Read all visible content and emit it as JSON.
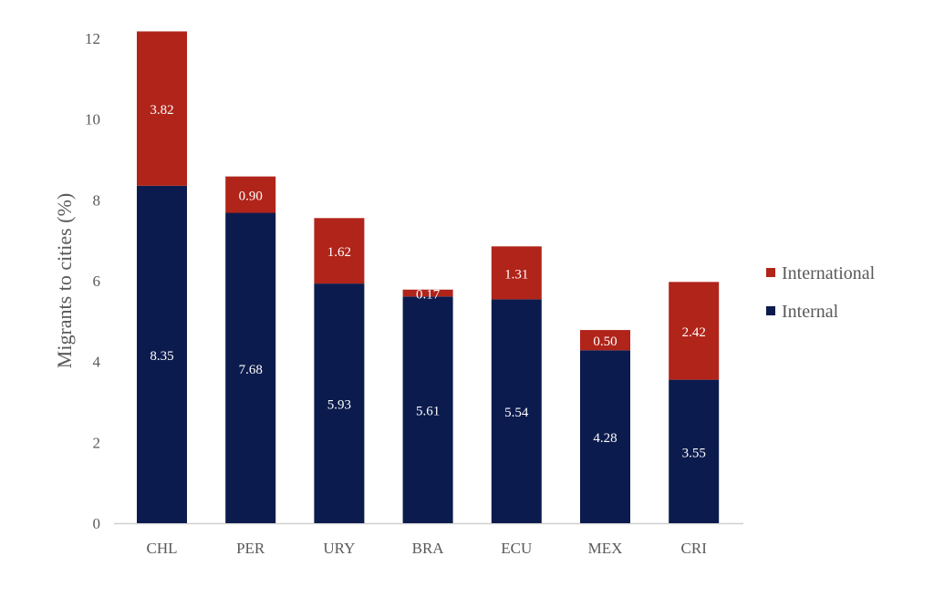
{
  "chart_data": {
    "type": "bar",
    "stacked": true,
    "title": "",
    "xlabel": "",
    "ylabel": "Migrants to cities (%)",
    "ylim": [
      0,
      12
    ],
    "yticks": [
      0,
      2,
      4,
      6,
      8,
      10,
      12
    ],
    "grid": false,
    "legend_position": "right",
    "categories": [
      "CHL",
      "PER",
      "URY",
      "BRA",
      "ECU",
      "MEX",
      "CRI"
    ],
    "series": [
      {
        "name": "Internal",
        "color": "#0C1B4D",
        "values": [
          8.35,
          7.68,
          5.93,
          5.61,
          5.54,
          4.28,
          3.55
        ],
        "labels": [
          "8.35",
          "7.68",
          "5.93",
          "5.61",
          "5.54",
          "4.28",
          "3.55"
        ]
      },
      {
        "name": "International",
        "color": "#B0241A",
        "values": [
          3.82,
          0.9,
          1.62,
          0.17,
          1.31,
          0.5,
          2.42
        ],
        "labels": [
          "3.82",
          "0.90",
          "1.62",
          "0.17",
          "1.31",
          "0.50",
          "2.42"
        ]
      }
    ],
    "legend": [
      "International",
      "Internal"
    ]
  }
}
